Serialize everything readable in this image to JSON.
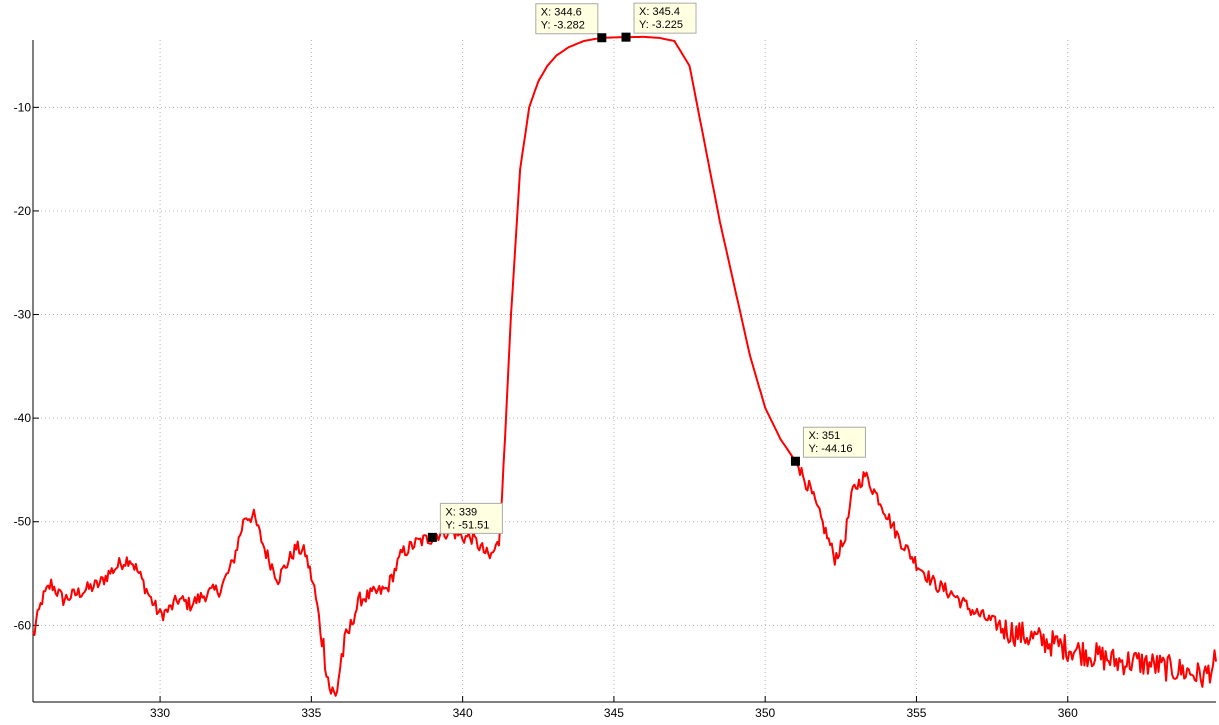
{
  "chart_data": {
    "type": "line",
    "title": "",
    "xlabel": "",
    "ylabel": "",
    "xlim": [
      325.8,
      364.9
    ],
    "ylim": [
      -67.4,
      -3.5
    ],
    "x_ticks": [
      330,
      335,
      340,
      345,
      350,
      355,
      360
    ],
    "y_ticks": [
      -10,
      -20,
      -30,
      -40,
      -50,
      -60
    ],
    "grid": true,
    "grid_style": "dotted",
    "series": [
      {
        "color": "#ff0000",
        "x": [
          325.8,
          326.1,
          326.4,
          326.8,
          327.2,
          327.6,
          328.0,
          328.3,
          328.7,
          329.0,
          329.3,
          329.7,
          330.0,
          330.3,
          330.6,
          331.0,
          331.5,
          332.0,
          332.4,
          332.8,
          333.1,
          333.5,
          333.9,
          334.2,
          334.5,
          334.8,
          335.1,
          335.4,
          335.6,
          335.8,
          336.0,
          336.3,
          336.6,
          337.0,
          337.5,
          338.0,
          338.5,
          339.0,
          339.3,
          339.7,
          340.0,
          340.3,
          340.6,
          340.9,
          341.2,
          341.4,
          341.6,
          341.9,
          342.2,
          342.5,
          342.8,
          343.1,
          343.5,
          344.0,
          344.6,
          345.4,
          346.0,
          346.5,
          347.0,
          347.5,
          348.0,
          348.5,
          349.0,
          349.5,
          350.0,
          350.5,
          351.0,
          351.5,
          352.0,
          352.3,
          352.6,
          352.9,
          353.3,
          353.8,
          354.4,
          355.0,
          355.6,
          356.2,
          356.8,
          357.4,
          358.0,
          358.6,
          359.2,
          359.8,
          360.4,
          361.0,
          361.6,
          362.2,
          362.8,
          363.4,
          364.0,
          364.5,
          364.9
        ],
        "y": [
          -61.0,
          -57.5,
          -56.0,
          -57.5,
          -57.0,
          -56.5,
          -56.0,
          -55.0,
          -54.0,
          -53.5,
          -55.0,
          -57.5,
          -59.0,
          -58.5,
          -57.5,
          -58.0,
          -57.0,
          -56.5,
          -54.0,
          -49.5,
          -49.5,
          -53.0,
          -55.5,
          -54.0,
          -52.5,
          -53.0,
          -56.5,
          -62.0,
          -66.0,
          -67.0,
          -63.0,
          -60.0,
          -57.5,
          -57.0,
          -56.5,
          -53.0,
          -52.0,
          -51.51,
          -51.0,
          -51.0,
          -51.5,
          -51.5,
          -52.5,
          -53.5,
          -52.0,
          -42.0,
          -30.0,
          -16.0,
          -10.0,
          -7.5,
          -6.0,
          -5.0,
          -4.2,
          -3.6,
          -3.282,
          -3.225,
          -3.2,
          -3.3,
          -3.6,
          -6.0,
          -13.5,
          -21.0,
          -27.5,
          -34.0,
          -39.0,
          -42.0,
          -44.16,
          -47.0,
          -51.0,
          -53.5,
          -52.0,
          -47.0,
          -45.5,
          -48.0,
          -51.5,
          -54.0,
          -56.0,
          -57.0,
          -58.5,
          -59.5,
          -60.5,
          -61.0,
          -61.5,
          -62.0,
          -62.5,
          -63.0,
          -63.5,
          -63.5,
          -63.8,
          -64.2,
          -64.5,
          -65.0,
          -63.5
        ]
      }
    ],
    "data_tips": [
      {
        "x_value": 344.6,
        "y_value": -3.282,
        "x_text": "X: 344.6",
        "y_text": "Y: -3.282",
        "box_side": "left"
      },
      {
        "x_value": 345.4,
        "y_value": -3.225,
        "x_text": "X: 345.4",
        "y_text": "Y: -3.225",
        "box_side": "right"
      },
      {
        "x_value": 351,
        "y_value": -44.16,
        "x_text": "X: 351",
        "y_text": "Y: -44.16",
        "box_side": "right"
      },
      {
        "x_value": 339,
        "y_value": -51.51,
        "x_text": "X: 339",
        "y_text": "Y: -51.51",
        "box_side": "right"
      }
    ],
    "colors": {
      "line": "#ff0000",
      "grid": "#b4b4b4",
      "axes": "#000000",
      "tip_bg": "#ffffe1",
      "tip_border": "#aaaaaa"
    }
  }
}
